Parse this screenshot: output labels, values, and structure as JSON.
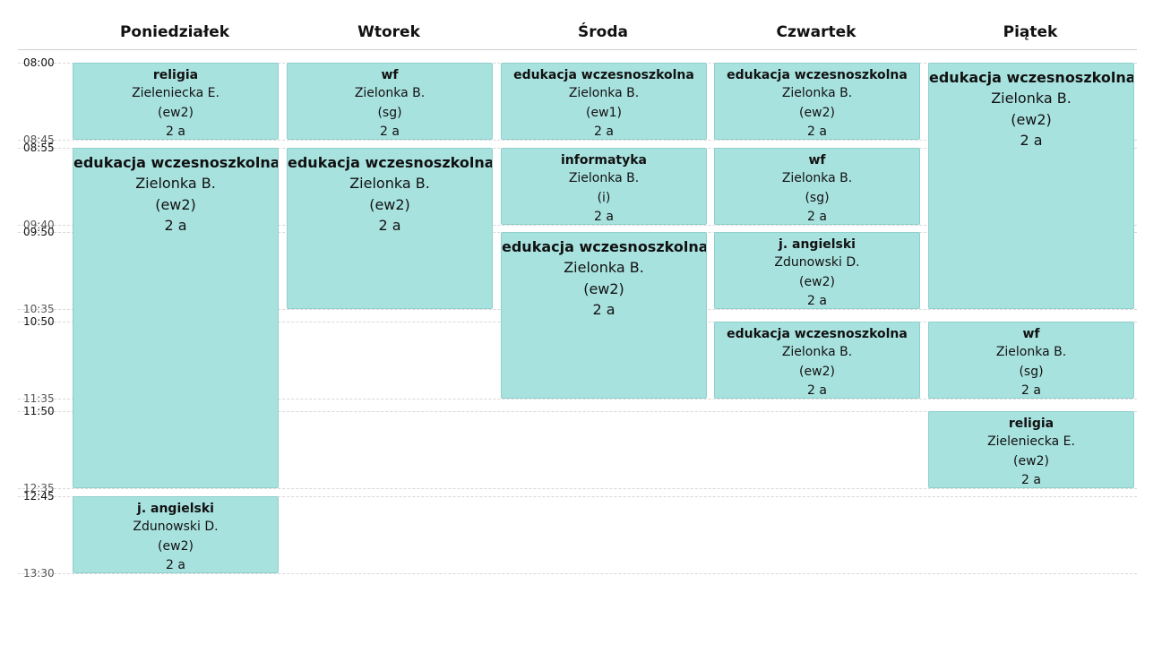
{
  "days": [
    "Poniedziałek",
    "Wtorek",
    "Środa",
    "Czwartek",
    "Piątek"
  ],
  "time_slots": [
    {
      "start": "08:00",
      "end": "08:45"
    },
    {
      "start": "08:55",
      "end": "09:40"
    },
    {
      "start": "09:50",
      "end": "10:35"
    },
    {
      "start": "10:50",
      "end": "11:35"
    },
    {
      "start": "11:50",
      "end": "12:35"
    },
    {
      "start": "12:45",
      "end": "13:30"
    }
  ],
  "lessons": [
    {
      "day": 0,
      "start": "08:00",
      "end": "08:45",
      "size": "small",
      "subject": "religia",
      "teacher": "Zieleniecka E.",
      "room": "(ew2)",
      "class": "2 a"
    },
    {
      "day": 0,
      "start": "08:55",
      "end": "12:35",
      "size": "large",
      "subject": "edukacja wczesnoszkolna",
      "teacher": "Zielonka B.",
      "room": "(ew2)",
      "class": "2 a"
    },
    {
      "day": 0,
      "start": "12:45",
      "end": "13:30",
      "size": "small",
      "subject": "j. angielski",
      "teacher": "Zdunowski D.",
      "room": "(ew2)",
      "class": "2 a"
    },
    {
      "day": 1,
      "start": "08:00",
      "end": "08:45",
      "size": "small",
      "subject": "wf",
      "teacher": "Zielonka B.",
      "room": "(sg)",
      "class": "2 a"
    },
    {
      "day": 1,
      "start": "08:55",
      "end": "10:35",
      "size": "large",
      "subject": "edukacja wczesnoszkolna",
      "teacher": "Zielonka B.",
      "room": "(ew2)",
      "class": "2 a"
    },
    {
      "day": 2,
      "start": "08:00",
      "end": "08:45",
      "size": "small",
      "subject": "edukacja wczesnoszkolna",
      "teacher": "Zielonka B.",
      "room": "(ew1)",
      "class": "2 a"
    },
    {
      "day": 2,
      "start": "08:55",
      "end": "09:40",
      "size": "small",
      "subject": "informatyka",
      "teacher": "Zielonka B.",
      "room": "(i)",
      "class": "2 a"
    },
    {
      "day": 2,
      "start": "09:50",
      "end": "11:35",
      "size": "large",
      "subject": "edukacja wczesnoszkolna",
      "teacher": "Zielonka B.",
      "room": "(ew2)",
      "class": "2 a"
    },
    {
      "day": 3,
      "start": "08:00",
      "end": "08:45",
      "size": "small",
      "subject": "edukacja wczesnoszkolna",
      "teacher": "Zielonka B.",
      "room": "(ew2)",
      "class": "2 a"
    },
    {
      "day": 3,
      "start": "08:55",
      "end": "09:40",
      "size": "small",
      "subject": "wf",
      "teacher": "Zielonka B.",
      "room": "(sg)",
      "class": "2 a"
    },
    {
      "day": 3,
      "start": "09:50",
      "end": "10:35",
      "size": "small",
      "subject": "j. angielski",
      "teacher": "Zdunowski D.",
      "room": "(ew2)",
      "class": "2 a"
    },
    {
      "day": 3,
      "start": "10:50",
      "end": "11:35",
      "size": "small",
      "subject": "edukacja wczesnoszkolna",
      "teacher": "Zielonka B.",
      "room": "(ew2)",
      "class": "2 a"
    },
    {
      "day": 4,
      "start": "08:00",
      "end": "10:35",
      "size": "large",
      "subject": "edukacja wczesnoszkolna",
      "teacher": "Zielonka B.",
      "room": "(ew2)",
      "class": "2 a"
    },
    {
      "day": 4,
      "start": "10:50",
      "end": "11:35",
      "size": "small",
      "subject": "wf",
      "teacher": "Zielonka B.",
      "room": "(sg)",
      "class": "2 a"
    },
    {
      "day": 4,
      "start": "11:50",
      "end": "12:35",
      "size": "small",
      "subject": "religia",
      "teacher": "Zieleniecka E.",
      "room": "(ew2)",
      "class": "2 a"
    }
  ],
  "colors": {
    "lesson_background": "#a8e2df",
    "lesson_border": "#8fcfcc"
  }
}
